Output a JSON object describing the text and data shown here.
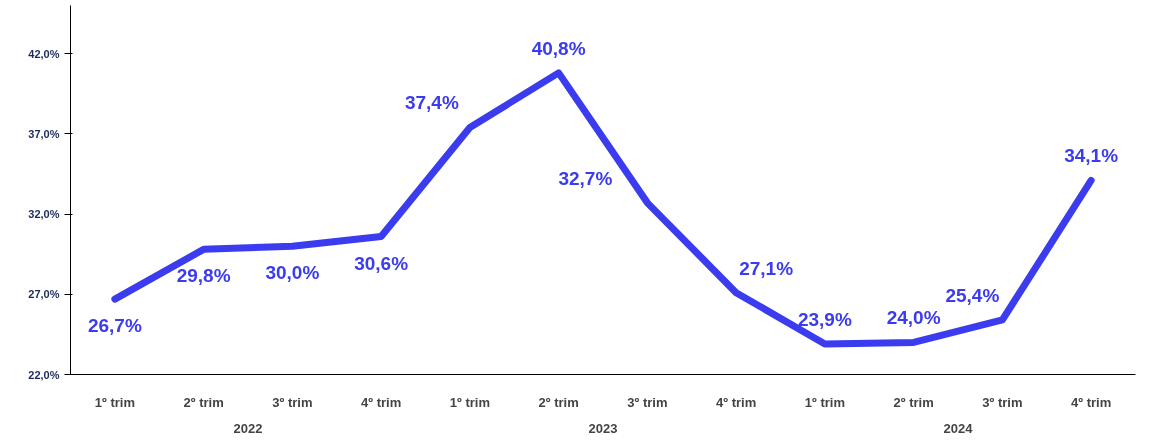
{
  "chart_data": {
    "type": "line",
    "categories": [
      "1º trim",
      "2º trim",
      "3º trim",
      "4º trim",
      "1º trim",
      "2º trim",
      "3º trim",
      "4º trim",
      "1º trim",
      "2º trim",
      "3º trim",
      "4º trim"
    ],
    "series": [
      {
        "color": "#3b3bef",
        "values": [
          26.7,
          29.8,
          30.0,
          30.6,
          37.4,
          40.8,
          32.7,
          27.1,
          23.9,
          24.0,
          25.4,
          34.1
        ],
        "value_labels": [
          "26,7%",
          "29,8%",
          "30,0%",
          "30,6%",
          "37,4%",
          "40,8%",
          "32,7%",
          "27,1%",
          "23,9%",
          "24,0%",
          "25,4%",
          "34,1%"
        ]
      }
    ],
    "annotations": [
      "2022",
      "2023",
      "2024"
    ],
    "ylim": [
      22,
      45
    ],
    "yticks": [
      {
        "value": 22,
        "label": "22,0%"
      },
      {
        "value": 27,
        "label": "27,0%"
      },
      {
        "value": 32,
        "label": "32,0%"
      },
      {
        "value": 37,
        "label": "37,0%"
      },
      {
        "value": 42,
        "label": "42,0%"
      }
    ],
    "grid": false,
    "marker": "none",
    "line_style": "solid"
  }
}
